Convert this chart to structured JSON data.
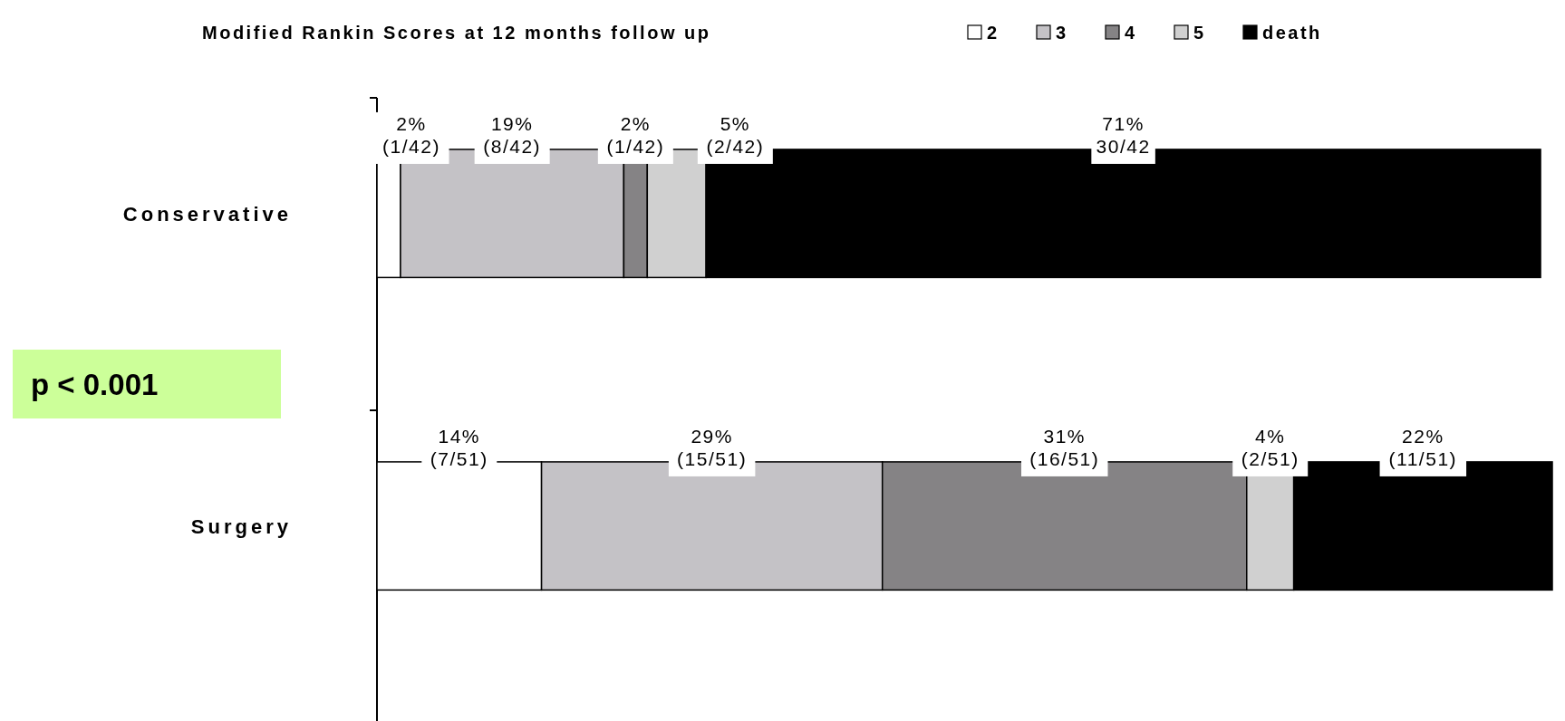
{
  "chart_data": {
    "type": "bar",
    "orientation": "horizontal",
    "stacked": true,
    "title": "Modified Rankin Scores at 12 months follow up",
    "categories": [
      "Conservative",
      "Surgery"
    ],
    "legend": "top right",
    "series": [
      {
        "name": "2",
        "color": "#ffffff",
        "values": [
          2,
          14
        ],
        "value_labels": [
          "2%\n(1/42)",
          "14%\n(7/51)"
        ]
      },
      {
        "name": "3",
        "color": "#c4c2c6",
        "values": [
          19,
          29
        ],
        "value_labels": [
          "19%\n(8/42)",
          "29%\n(15/51)"
        ]
      },
      {
        "name": "4",
        "color": "#858385",
        "values": [
          2,
          31
        ],
        "value_labels": [
          "2%\n(1/42)",
          "31%\n(16/51)"
        ]
      },
      {
        "name": "5",
        "color": "#d0d0d0",
        "values": [
          5,
          4
        ],
        "value_labels": [
          "5%\n(2/42)",
          "4%\n(2/51)"
        ]
      },
      {
        "name": "death",
        "color": "#000000",
        "values": [
          71,
          22
        ],
        "value_labels": [
          "71%\n30/42",
          "22%\n(11/51)"
        ]
      }
    ],
    "annotations": [
      "p < 0.001"
    ]
  }
}
